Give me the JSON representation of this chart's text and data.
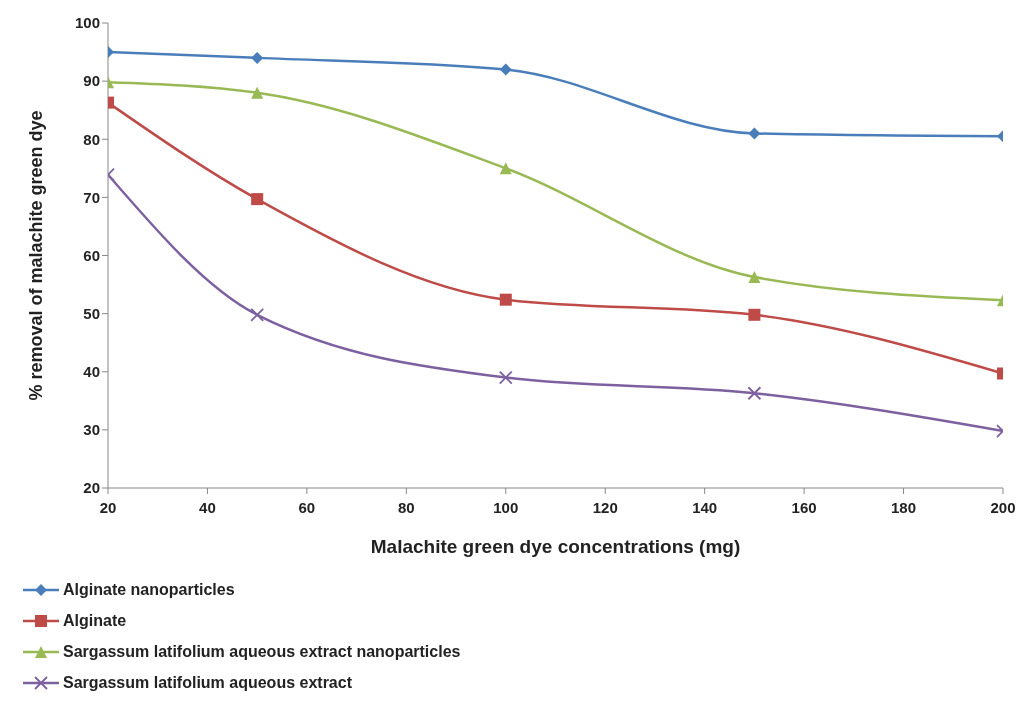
{
  "chart_data": {
    "type": "line",
    "xlabel": "Malachite green dye concentrations (mg)",
    "ylabel": "% removal of malachite green dye",
    "x": [
      20,
      50,
      100,
      150,
      200
    ],
    "xlim": [
      20,
      200
    ],
    "xticks": [
      20,
      40,
      60,
      80,
      100,
      120,
      140,
      160,
      180,
      200
    ],
    "ylim": [
      20,
      100
    ],
    "yticks": [
      20,
      30,
      40,
      50,
      60,
      70,
      80,
      90,
      100
    ],
    "legend": "bottom",
    "line_style": "solid",
    "series": [
      {
        "name": "Alginate nanoparticles",
        "color": "#4a7ebb",
        "marker": "diamond",
        "values": [
          95,
          94,
          92,
          81,
          80.5
        ]
      },
      {
        "name": "Alginate",
        "color": "#be4b48",
        "marker": "square",
        "values": [
          86.3,
          69.7,
          52.4,
          49.8,
          39.7
        ]
      },
      {
        "name": "Sargassum latifolium aqueous extract nanoparticles",
        "color": "#98b954",
        "marker": "triangle",
        "values": [
          89.8,
          88,
          75,
          56.3,
          52.3
        ]
      },
      {
        "name": "Sargassum latifolium aqueous extract",
        "color": "#7d60a0",
        "marker": "cross",
        "values": [
          73.9,
          49.8,
          39,
          36.3,
          29.8
        ]
      }
    ]
  }
}
